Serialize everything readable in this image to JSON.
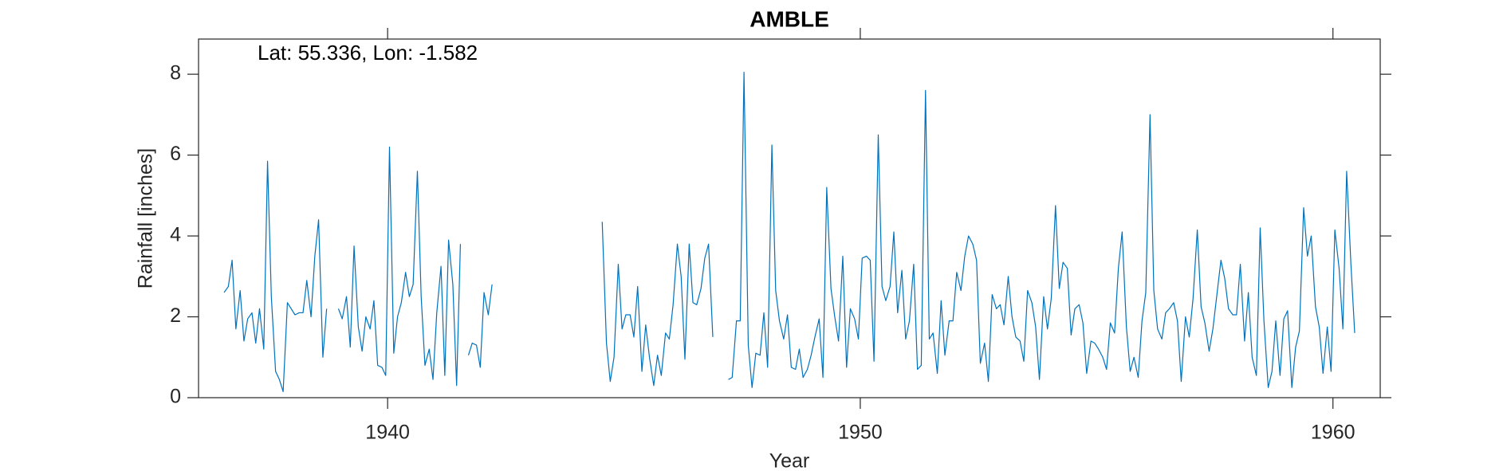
{
  "chart_data": {
    "type": "line",
    "title": "AMBLE",
    "annotation": "Lat: 55.336, Lon: -1.582",
    "xlabel": "Year",
    "ylabel": "Rainfall [inches]",
    "color": "#0072bd",
    "xlim": [
      1936,
      1961
    ],
    "ylim": [
      0,
      8.87
    ],
    "xticks": [
      1940,
      1950,
      1960
    ],
    "yticks": [
      0,
      2,
      4,
      6,
      8
    ],
    "x": [
      1936.54,
      1936.63,
      1936.71,
      1936.79,
      1936.88,
      1936.96,
      1937.04,
      1937.13,
      1937.21,
      1937.29,
      1937.38,
      1937.46,
      1937.54,
      1937.63,
      1937.71,
      1937.79,
      1937.88,
      1937.96,
      1938.04,
      1938.13,
      1938.21,
      1938.29,
      1938.38,
      1938.46,
      1938.54,
      1938.63,
      1938.71,
      1938.79,
      1938.88,
      1938.96,
      1939.04,
      1939.13,
      1939.21,
      1939.29,
      1939.38,
      1939.46,
      1939.54,
      1939.63,
      1939.71,
      1939.79,
      1939.88,
      1939.96,
      1940.04,
      1940.13,
      1940.21,
      1940.29,
      1940.38,
      1940.46,
      1940.54,
      1940.63,
      1940.71,
      1940.79,
      1940.88,
      1940.96,
      1941.04,
      1941.13,
      1941.21,
      1941.29,
      1941.38,
      1941.46,
      1941.54,
      1941.63,
      1941.71,
      1941.79,
      1941.88,
      1941.96,
      1942.04,
      1942.13,
      1942.21,
      1942.29,
      1942.38,
      1942.46,
      1942.54,
      1942.63,
      1942.71,
      1942.79,
      1942.88,
      1942.96,
      1943.04,
      1943.13,
      1943.21,
      1943.29,
      1943.38,
      1943.46,
      1943.54,
      1943.63,
      1943.71,
      1943.79,
      1943.88,
      1943.96,
      1944.04,
      1944.13,
      1944.21,
      1944.29,
      1944.38,
      1944.46,
      1944.54,
      1944.63,
      1944.71,
      1944.79,
      1944.88,
      1944.96,
      1945.04,
      1945.13,
      1945.21,
      1945.29,
      1945.38,
      1945.46,
      1945.54,
      1945.63,
      1945.71,
      1945.79,
      1945.88,
      1945.96,
      1946.04,
      1946.13,
      1946.21,
      1946.29,
      1946.38,
      1946.46,
      1946.54,
      1946.63,
      1946.71,
      1946.79,
      1946.88,
      1946.96,
      1947.04,
      1947.13,
      1947.21,
      1947.29,
      1947.38,
      1947.46,
      1947.54,
      1947.63,
      1947.71,
      1947.79,
      1947.88,
      1947.96,
      1948.04,
      1948.13,
      1948.21,
      1948.29,
      1948.38,
      1948.46,
      1948.54,
      1948.63,
      1948.71,
      1948.79,
      1948.88,
      1948.96,
      1949.04,
      1949.13,
      1949.21,
      1949.29,
      1949.38,
      1949.46,
      1949.54,
      1949.63,
      1949.71,
      1949.79,
      1949.88,
      1949.96,
      1950.04,
      1950.13,
      1950.21,
      1950.29,
      1950.38,
      1950.46,
      1950.54,
      1950.63,
      1950.71,
      1950.79,
      1950.88,
      1950.96,
      1951.04,
      1951.13,
      1951.21,
      1951.29,
      1951.38,
      1951.46,
      1951.54,
      1951.63,
      1951.71,
      1951.79,
      1951.88,
      1951.96,
      1952.04,
      1952.13,
      1952.21,
      1952.29,
      1952.38,
      1952.46,
      1952.54,
      1952.63,
      1952.71,
      1952.79,
      1952.88,
      1952.96,
      1953.04,
      1953.13,
      1953.21,
      1953.29,
      1953.38,
      1953.46,
      1953.54,
      1953.63,
      1953.71,
      1953.79,
      1953.88,
      1953.96,
      1954.04,
      1954.13,
      1954.21,
      1954.29,
      1954.38,
      1954.46,
      1954.54,
      1954.63,
      1954.71,
      1954.79,
      1954.88,
      1954.96,
      1955.04,
      1955.13,
      1955.21,
      1955.29,
      1955.38,
      1955.46,
      1955.54,
      1955.63,
      1955.71,
      1955.79,
      1955.88,
      1955.96,
      1956.04,
      1956.13,
      1956.21,
      1956.29,
      1956.38,
      1956.46,
      1956.54,
      1956.63,
      1956.71,
      1956.79,
      1956.88,
      1956.96,
      1957.04,
      1957.13,
      1957.21,
      1957.29,
      1957.38,
      1957.46,
      1957.54,
      1957.63,
      1957.71,
      1957.79,
      1957.88,
      1957.96,
      1958.04,
      1958.13,
      1958.21,
      1958.29,
      1958.38,
      1958.46,
      1958.54,
      1958.63,
      1958.71,
      1958.79,
      1958.88,
      1958.96,
      1959.04,
      1959.13,
      1959.21,
      1959.29,
      1959.38,
      1959.46,
      1959.54,
      1959.63,
      1959.71,
      1959.79,
      1959.88,
      1959.96,
      1960.04,
      1960.13,
      1960.21,
      1960.29,
      1960.38,
      1960.46
    ],
    "values": [
      2.6,
      2.75,
      3.4,
      1.7,
      2.65,
      1.4,
      1.95,
      2.1,
      1.35,
      2.2,
      1.2,
      5.85,
      2.5,
      0.65,
      0.45,
      0.15,
      2.35,
      2.2,
      2.05,
      2.1,
      2.1,
      2.9,
      2.0,
      3.5,
      4.4,
      1.0,
      2.2,
      null,
      null,
      2.2,
      1.95,
      2.5,
      1.25,
      3.75,
      1.75,
      1.15,
      2.0,
      1.7,
      2.4,
      0.8,
      0.75,
      0.55,
      6.2,
      1.1,
      2.0,
      2.35,
      3.1,
      2.5,
      2.8,
      5.6,
      2.5,
      0.8,
      1.2,
      0.45,
      2.1,
      3.25,
      0.55,
      3.9,
      2.8,
      0.3,
      3.8,
      null,
      1.05,
      1.35,
      1.3,
      0.75,
      2.6,
      2.05,
      2.8,
      null,
      null,
      null,
      null,
      null,
      null,
      null,
      null,
      null,
      null,
      null,
      null,
      null,
      null,
      null,
      null,
      null,
      null,
      null,
      null,
      null,
      null,
      null,
      null,
      null,
      null,
      null,
      4.35,
      1.35,
      0.4,
      1.0,
      3.3,
      1.7,
      2.05,
      2.05,
      1.5,
      2.75,
      0.65,
      1.8,
      1.0,
      0.3,
      1.05,
      0.55,
      1.6,
      1.45,
      2.3,
      3.8,
      3.0,
      0.95,
      3.8,
      2.35,
      2.3,
      2.7,
      3.45,
      3.8,
      1.5,
      null,
      null,
      null,
      0.45,
      0.5,
      1.9,
      1.9,
      8.05,
      1.3,
      0.25,
      1.1,
      1.05,
      2.1,
      0.75,
      6.25,
      2.65,
      1.9,
      1.45,
      2.05,
      0.75,
      0.7,
      1.2,
      0.5,
      0.7,
      1.05,
      1.5,
      1.95,
      0.5,
      5.2,
      2.7,
      2.0,
      1.4,
      3.5,
      0.75,
      2.2,
      1.95,
      1.45,
      3.45,
      3.5,
      3.4,
      0.9,
      6.5,
      2.75,
      2.4,
      2.75,
      4.1,
      2.1,
      3.15,
      1.45,
      1.9,
      3.3,
      0.7,
      0.8,
      7.6,
      1.45,
      1.6,
      0.6,
      2.4,
      1.05,
      1.9,
      1.9,
      3.1,
      2.65,
      3.5,
      4.0,
      3.8,
      3.4,
      0.85,
      1.35,
      0.4,
      2.55,
      2.2,
      2.3,
      1.8,
      3.0,
      2.0,
      1.5,
      1.4,
      0.9,
      2.65,
      2.35,
      1.75,
      0.45,
      2.5,
      1.7,
      2.45,
      4.75,
      2.7,
      3.35,
      3.2,
      1.55,
      2.2,
      2.3,
      1.85,
      0.6,
      1.4,
      1.35,
      1.2,
      1.0,
      0.7,
      1.85,
      1.6,
      3.2,
      4.1,
      1.75,
      0.65,
      1.0,
      0.5,
      1.9,
      2.6,
      7.0,
      2.65,
      1.7,
      1.45,
      2.1,
      2.2,
      2.35,
      1.9,
      0.4,
      2.0,
      1.5,
      2.45,
      4.15,
      2.25,
      1.85,
      1.15,
      1.7,
      2.5,
      3.4,
      2.95,
      2.2,
      2.05,
      2.05,
      3.3,
      1.4,
      2.6,
      1.0,
      0.55,
      4.2,
      1.9,
      0.25,
      0.65,
      1.9,
      0.55,
      1.95,
      2.15,
      0.25,
      1.25,
      1.65,
      4.7,
      3.5,
      4.0,
      2.25,
      1.75,
      0.6,
      1.75,
      0.65,
      4.15,
      3.2,
      1.7,
      5.6,
      3.3,
      1.6
    ]
  }
}
